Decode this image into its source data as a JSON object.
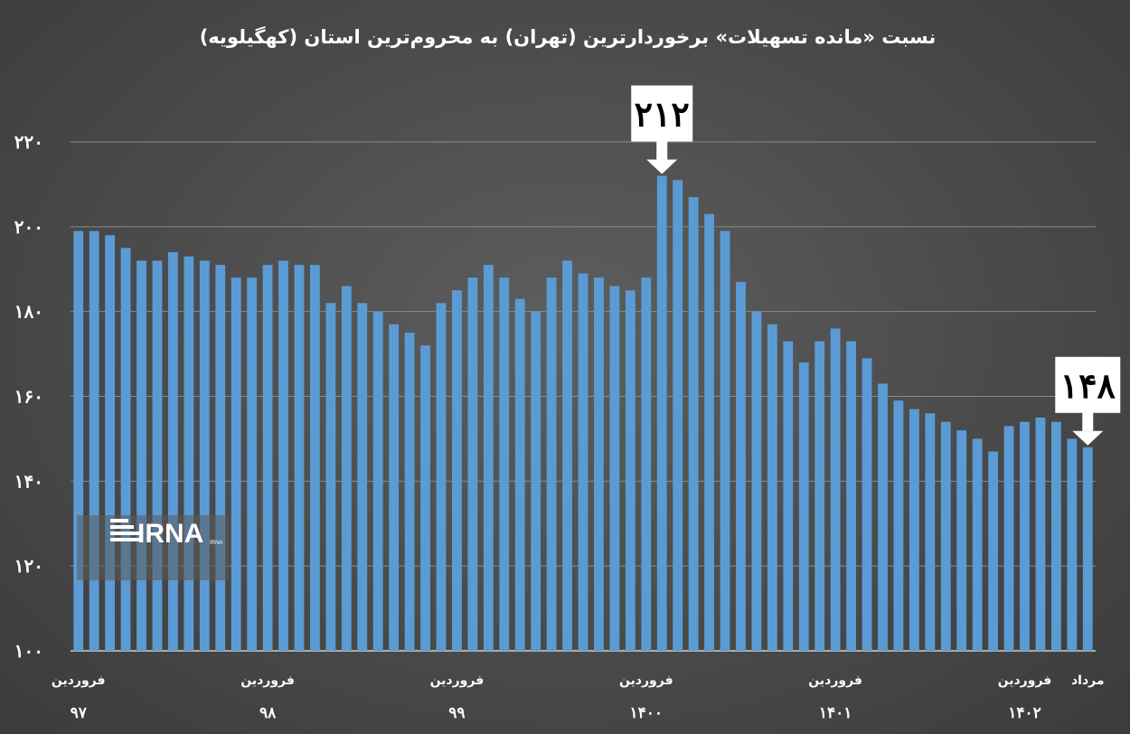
{
  "chart_data": {
    "type": "bar",
    "title": "نسبت «مانده تسهیلات» برخوردارترین (تهران) به محروم‌ترین استان (کهگیلویه)",
    "xlabel": "",
    "ylabel": "",
    "ylim": [
      100,
      220
    ],
    "yticks": [
      100,
      120,
      140,
      160,
      180,
      200,
      220
    ],
    "ytick_labels": [
      "۱۰۰",
      "۱۲۰",
      "۱۴۰",
      "۱۶۰",
      "۱۸۰",
      "۲۰۰",
      "۲۲۰"
    ],
    "grid": true,
    "bar_color": "#5b9bd5",
    "values": [
      199,
      199,
      198,
      195,
      192,
      192,
      194,
      193,
      192,
      191,
      188,
      188,
      191,
      192,
      191,
      191,
      182,
      186,
      182,
      180,
      177,
      175,
      172,
      182,
      185,
      188,
      191,
      188,
      183,
      180,
      188,
      192,
      189,
      188,
      186,
      185,
      188,
      212,
      211,
      207,
      203,
      199,
      187,
      180,
      177,
      173,
      168,
      173,
      176,
      173,
      169,
      163,
      159,
      157,
      156,
      154,
      152,
      150,
      147,
      153,
      154,
      155,
      154,
      150,
      148
    ],
    "x_labels": [
      {
        "index": 0,
        "month": "فروردین",
        "year": "۹۷"
      },
      {
        "index": 12,
        "month": "فروردین",
        "year": "۹۸"
      },
      {
        "index": 24,
        "month": "فروردین",
        "year": "۹۹"
      },
      {
        "index": 36,
        "month": "فروردین",
        "year": "۱۴۰۰"
      },
      {
        "index": 48,
        "month": "فروردین",
        "year": "۱۴۰۱"
      },
      {
        "index": 60,
        "month": "فروردین",
        "year": "۱۴۰۲"
      },
      {
        "index": 64,
        "month": "مرداد",
        "year": ""
      }
    ],
    "annotations": [
      {
        "index": 37,
        "text": "۲۱۲"
      },
      {
        "index": 64,
        "text": "۱۴۸"
      }
    ]
  },
  "logo": {
    "text": "IRNA",
    "subtext": "IRNA"
  }
}
